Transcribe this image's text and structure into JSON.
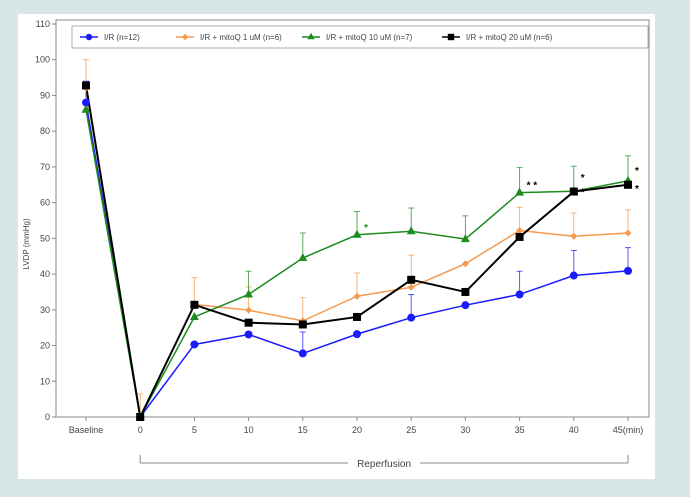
{
  "chart_data": {
    "type": "line",
    "title": "",
    "xlabel": "",
    "ylabel": "LVDP (mmHg)",
    "ylim": [
      0,
      110
    ],
    "yticks": [
      0,
      10,
      20,
      30,
      40,
      50,
      60,
      70,
      80,
      90,
      100,
      110
    ],
    "x": [
      "Baseline",
      "0",
      "5",
      "10",
      "15",
      "20",
      "25",
      "30",
      "35",
      "40",
      "45"
    ],
    "x_tick_labels": [
      "Baseline",
      "0",
      "5",
      "10",
      "15",
      "20",
      "25",
      "30",
      "35",
      "40",
      "45(min)"
    ],
    "grid": false,
    "legend_position": "top",
    "bracket_label": "Reperfusion",
    "series": [
      {
        "name": "I/R (n=12)",
        "color": "#1a1aff",
        "marker": "circle",
        "values": [
          88,
          0,
          20.3,
          23.1,
          17.8,
          23.2,
          27.8,
          31.3,
          34.3,
          39.6,
          40.9
        ],
        "errors": [
          6,
          0,
          0,
          0,
          6,
          0,
          6.5,
          0,
          6.5,
          7,
          6.5
        ]
      },
      {
        "name": "I/R + mitoQ 1 uM (n=6)",
        "color": "#f39a4e",
        "marker": "diamond",
        "values": [
          92,
          0,
          31.5,
          29.9,
          26.9,
          33.8,
          36.3,
          42.9,
          52.2,
          50.6,
          51.5
        ],
        "errors": [
          8,
          6.5,
          7.5,
          6.5,
          6.5,
          6.5,
          9,
          0,
          6.5,
          6.5,
          6.5
        ]
      },
      {
        "name": "I/R + mitoQ 10 uM (n=7)",
        "color": "#1e8c1e",
        "marker": "triangle",
        "values": [
          86,
          0,
          28,
          34.3,
          44.5,
          51,
          52,
          49.8,
          62.8,
          63.2,
          66.1
        ],
        "errors": [
          0,
          0,
          0,
          6.5,
          7,
          6.5,
          6.5,
          6.5,
          7,
          7,
          7
        ]
      },
      {
        "name": "I/R + mitoQ 20 uM (n=6)",
        "color": "#000000",
        "marker": "square",
        "values": [
          92.8,
          0,
          31.4,
          26.4,
          25.9,
          28,
          38.4,
          35,
          50.4,
          63.1,
          65
        ],
        "errors": [
          0,
          0,
          0,
          0,
          0,
          0,
          0,
          0,
          0,
          0,
          0
        ]
      }
    ],
    "annotations": [
      {
        "text": "*",
        "x": "20",
        "y": 52,
        "color": "#1e8c1e"
      },
      {
        "text": "* *",
        "x": "35",
        "y": 64,
        "color": "#000000"
      },
      {
        "text": "*",
        "x": "40",
        "y": 66,
        "color": "#000000"
      },
      {
        "text": "*",
        "x": "40",
        "y": 62,
        "color": "#000000"
      },
      {
        "text": "*",
        "x": "45",
        "y": 68,
        "color": "#000000"
      },
      {
        "text": "*",
        "x": "45",
        "y": 63,
        "color": "#000000"
      }
    ]
  }
}
